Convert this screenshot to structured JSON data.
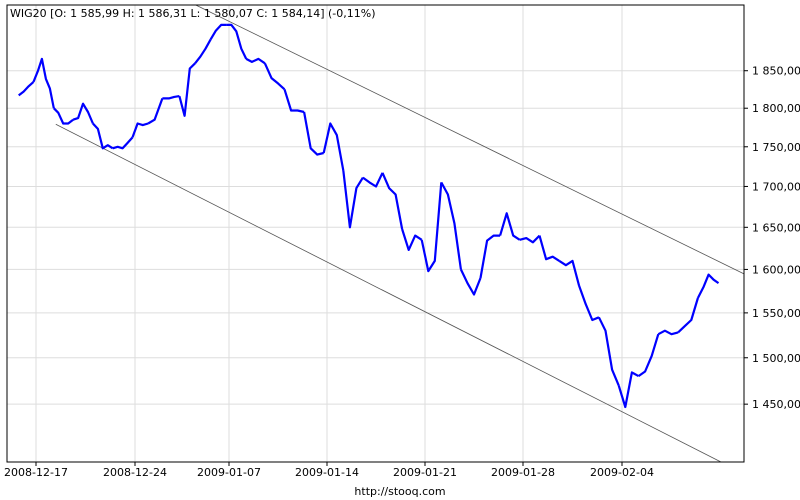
{
  "header": {
    "title": "WIG20 [O: 1 585,99  H: 1 586,31  L: 1 580,07  C: 1 584,14] (-0,11%)"
  },
  "footer": {
    "source": "http://stooq.com"
  },
  "colors": {
    "series": "#0000ff",
    "grid": "#dddddd",
    "trendline": "#555555"
  },
  "chart_data": {
    "type": "line",
    "title": "WIG20 [O: 1 585,99  H: 1 586,31  L: 1 580,07  C: 1 584,14] (-0,11%)",
    "y_scale": "log",
    "ylim": [
      1390,
      1941
    ],
    "grid": true,
    "yticks": [
      1850,
      1800,
      1750,
      1700,
      1650,
      1600,
      1550,
      1500,
      1450
    ],
    "ytick_labels": [
      "1 850,00",
      "1 800,00",
      "1 750,00",
      "1 700,00",
      "1 650,00",
      "1 600,00",
      "1 550,00",
      "1 500,00",
      "1 450,00"
    ],
    "xticks": [
      "2008-12-17",
      "2008-12-24",
      "2009-01-07",
      "2009-01-14",
      "2009-01-21",
      "2009-01-28",
      "2009-02-04"
    ],
    "sessions": [
      {
        "date": "2008-12-16",
        "values": [
          1817,
          1822,
          1829,
          1835
        ]
      },
      {
        "date": "2008-12-17",
        "values": [
          1850,
          1866,
          1839,
          1826,
          1800
        ]
      },
      {
        "date": "2008-12-18",
        "values": [
          1794,
          1780,
          1780,
          1785
        ]
      },
      {
        "date": "2008-12-19",
        "values": [
          1787,
          1806,
          1795,
          1780
        ]
      },
      {
        "date": "2008-12-22",
        "values": [
          1773,
          1748,
          1752,
          1748
        ]
      },
      {
        "date": "2008-12-23",
        "values": [
          1750,
          1748,
          1755,
          1762
        ]
      },
      {
        "date": "2008-12-24",
        "values": [
          1780,
          1778,
          1780
        ]
      },
      {
        "date": "2008-12-29",
        "values": [
          1785,
          1813
        ]
      },
      {
        "date": "2008-12-30",
        "values": [
          1813,
          1815,
          1816
        ]
      },
      {
        "date": "2009-01-02",
        "values": [
          1790,
          1853,
          1860
        ]
      },
      {
        "date": "2009-01-05",
        "values": [
          1869,
          1880,
          1893
        ]
      },
      {
        "date": "2009-01-06",
        "values": [
          1905,
          1913,
          1913
        ]
      },
      {
        "date": "2009-01-07",
        "values": [
          1913,
          1904,
          1880,
          1866
        ]
      },
      {
        "date": "2009-01-08",
        "values": [
          1862,
          1866,
          1860
        ]
      },
      {
        "date": "2009-01-09",
        "values": [
          1840,
          1833,
          1825
        ]
      },
      {
        "date": "2009-01-12",
        "values": [
          1797,
          1797,
          1795
        ]
      },
      {
        "date": "2009-01-13",
        "values": [
          1748,
          1740,
          1742
        ]
      },
      {
        "date": "2009-01-14",
        "values": [
          1780,
          1765,
          1720
        ]
      },
      {
        "date": "2009-01-15",
        "values": [
          1650,
          1698,
          1711
        ]
      },
      {
        "date": "2009-01-16",
        "values": [
          1705,
          1700,
          1717
        ]
      },
      {
        "date": "2009-01-19",
        "values": [
          1698,
          1690,
          1648
        ]
      },
      {
        "date": "2009-01-20",
        "values": [
          1623,
          1640,
          1635
        ]
      },
      {
        "date": "2009-01-21",
        "values": [
          1598,
          1610,
          1705
        ]
      },
      {
        "date": "2009-01-22",
        "values": [
          1690,
          1655,
          1600
        ]
      },
      {
        "date": "2009-01-23",
        "values": [
          1584,
          1571,
          1590
        ]
      },
      {
        "date": "2009-01-26",
        "values": [
          1634,
          1640,
          1640
        ]
      },
      {
        "date": "2009-01-27",
        "values": [
          1667,
          1640,
          1635
        ]
      },
      {
        "date": "2009-01-28",
        "values": [
          1637,
          1632,
          1640
        ]
      },
      {
        "date": "2009-01-29",
        "values": [
          1612,
          1615,
          1610
        ]
      },
      {
        "date": "2009-01-30",
        "values": [
          1605,
          1610,
          1581
        ]
      },
      {
        "date": "2009-02-02",
        "values": [
          1560,
          1542,
          1545
        ]
      },
      {
        "date": "2009-02-03",
        "values": [
          1530,
          1487,
          1470
        ]
      },
      {
        "date": "2009-02-04",
        "values": [
          1447,
          1484,
          1480
        ]
      },
      {
        "date": "2009-02-05",
        "values": [
          1485,
          1502,
          1526
        ]
      },
      {
        "date": "2009-02-06",
        "values": [
          1530,
          1526,
          1528
        ]
      },
      {
        "date": "2009-02-09",
        "values": [
          1535,
          1542,
          1567
        ]
      },
      {
        "date": "2009-02-10",
        "values": [
          1580,
          1594,
          1588,
          1584.14
        ]
      }
    ],
    "trendlines": [
      {
        "from": {
          "date": "2009-01-07",
          "value": 1918
        },
        "to": {
          "date": "2009-02-10",
          "value": 1608
        }
      },
      {
        "from": {
          "date": "2008-12-18",
          "value": 1779
        },
        "to": {
          "date": "2009-02-10",
          "value": 1390
        }
      }
    ]
  }
}
